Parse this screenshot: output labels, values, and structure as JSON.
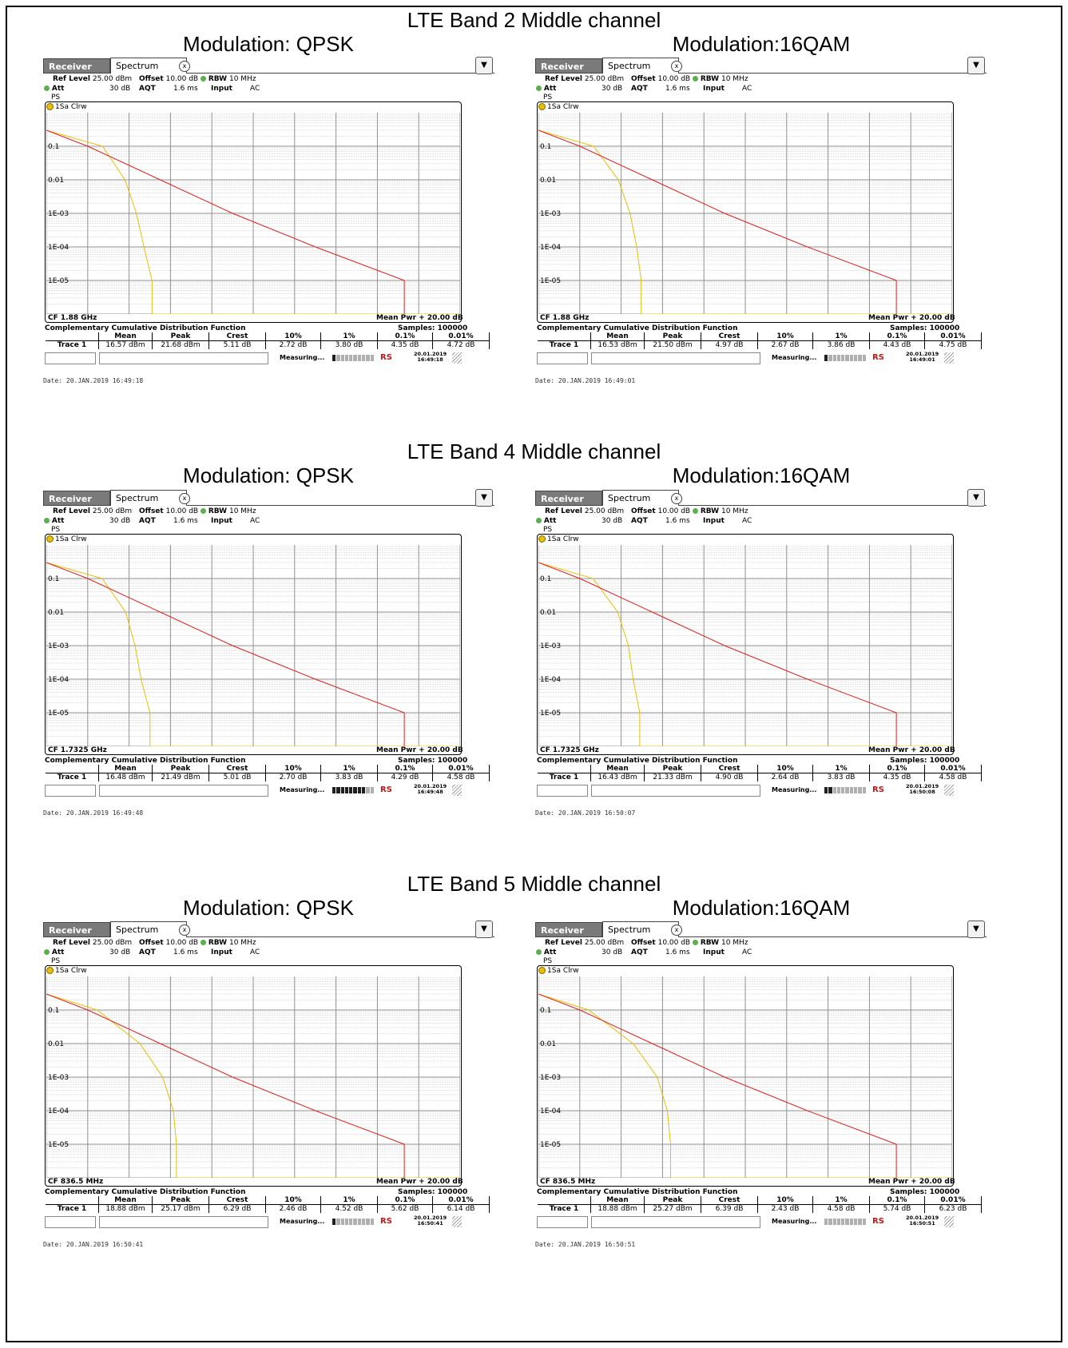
{
  "sections": [
    {
      "title": "LTE Band 2 Middle channel"
    },
    {
      "title": "LTE Band 4 Middle channel"
    },
    {
      "title": "LTE Band 5 Middle channel"
    }
  ],
  "modulation_labels": [
    "Modulation: QPSK",
    "Modulation:16QAM"
  ],
  "ui": {
    "tab_receiver": "Receiver",
    "tab_spectrum": "Spectrum",
    "close_glyph": "x",
    "ref_level_label": "Ref Level",
    "ref_level_value": "25.00 dBm",
    "offset_label": "Offset",
    "offset_value": "10.00 dB",
    "rbw_label": "RBW",
    "rbw_value": "10 MHz",
    "att_label": "Att",
    "att_value": "30 dB",
    "aqt_label": "AQT",
    "aqt_value": "1.6 ms",
    "input_label": "Input",
    "input_value": "AC",
    "ps_label": "PS",
    "trace_label": "1Sa Clrw",
    "mean_pwr": "Mean Pwr + 20.00 dB",
    "ccdf_title": "Complementary Cumulative Distribution Function",
    "samples": "Samples:  100000",
    "table_headers": [
      "",
      "Mean",
      "Peak",
      "Crest",
      "10%",
      "1%",
      "0.1%",
      "0.01%"
    ],
    "measuring": "Measuring...",
    "logo": "RS",
    "y_tick_labels": [
      "0.1",
      "0.01",
      "1E-03",
      "1E-04",
      "1E-05"
    ]
  },
  "colors": {
    "trace_red": "#e02020",
    "trace_yellow": "#e8c000",
    "grid": "#808080"
  },
  "chart_data": [
    {
      "type": "line",
      "title": "LTE Band 2 Middle channel - Modulation: QPSK",
      "cf": "CF 1.88 GHz",
      "date": "Date: 20.JAN.2019  16:49:18",
      "status_date": "20.01.2019",
      "status_time": "16:49:18",
      "meter_on": 1,
      "row": [
        "Trace 1",
        "16.57 dBm",
        "21.68 dBm",
        "5.11 dB",
        "2.72 dB",
        "3.80 dB",
        "4.35 dB",
        "4.72 dB"
      ],
      "ylim": [
        1e-06,
        1
      ],
      "xlim": [
        0,
        20
      ],
      "series": [
        {
          "values_x": [
            0,
            2.72,
            3.8,
            4.35,
            4.72,
            5.11
          ]
        },
        {
          "values_x": [
            0,
            2.0,
            5.5,
            9.0,
            13.0,
            17.3
          ]
        }
      ]
    },
    {
      "type": "line",
      "title": "LTE Band 2 Middle channel - Modulation:16QAM",
      "cf": "CF 1.88 GHz",
      "date": "Date: 20.JAN.2019  16:49:01",
      "status_date": "20.01.2019",
      "status_time": "16:49:01",
      "meter_on": 1,
      "row": [
        "Trace 1",
        "16.53 dBm",
        "21.50 dBm",
        "4.97 dB",
        "2.67 dB",
        "3.86 dB",
        "4.43 dB",
        "4.75 dB"
      ],
      "ylim": [
        1e-06,
        1
      ],
      "xlim": [
        0,
        20
      ],
      "series": [
        {
          "values_x": [
            0,
            2.67,
            3.86,
            4.43,
            4.75,
            4.97
          ]
        },
        {
          "values_x": [
            0,
            2.0,
            5.5,
            9.0,
            13.0,
            17.3
          ]
        }
      ]
    },
    {
      "type": "line",
      "title": "LTE Band 4 Middle channel - Modulation: QPSK",
      "cf": "CF 1.7325 GHz",
      "date": "Date: 20.JAN.2019  16:49:48",
      "status_date": "20.01.2019",
      "status_time": "16:49:48",
      "meter_on": 8,
      "row": [
        "Trace 1",
        "16.48 dBm",
        "21.49 dBm",
        "5.01 dB",
        "2.70 dB",
        "3.83 dB",
        "4.29 dB",
        "4.58 dB"
      ],
      "ylim": [
        1e-06,
        1
      ],
      "xlim": [
        0,
        20
      ],
      "series": [
        {
          "values_x": [
            0,
            2.7,
            3.83,
            4.29,
            4.58,
            5.01
          ]
        },
        {
          "values_x": [
            0,
            2.0,
            5.5,
            9.0,
            13.0,
            17.3
          ]
        }
      ]
    },
    {
      "type": "line",
      "title": "LTE Band 4 Middle channel - Modulation:16QAM",
      "cf": "CF 1.7325 GHz",
      "date": "Date: 20.JAN.2019  16:50:07",
      "status_date": "20.01.2019",
      "status_time": "16:50:08",
      "meter_on": 2,
      "row": [
        "Trace 1",
        "16.43 dBm",
        "21.33 dBm",
        "4.90 dB",
        "2.64 dB",
        "3.83 dB",
        "4.35 dB",
        "4.58 dB"
      ],
      "ylim": [
        1e-06,
        1
      ],
      "xlim": [
        0,
        20
      ],
      "series": [
        {
          "values_x": [
            0,
            2.64,
            3.83,
            4.35,
            4.58,
            4.9
          ]
        },
        {
          "values_x": [
            0,
            2.0,
            5.5,
            9.0,
            13.0,
            17.3
          ]
        }
      ]
    },
    {
      "type": "line",
      "title": "LTE Band 5 Middle channel - Modulation: QPSK",
      "cf": "CF 836.5 MHz",
      "date": "Date: 20.JAN.2019  16:50:41",
      "status_date": "20.01.2019",
      "status_time": "16:50:41",
      "meter_on": 1,
      "row": [
        "Trace 1",
        "18.88 dBm",
        "25.17 dBm",
        "6.29 dB",
        "2.46 dB",
        "4.52 dB",
        "5.62 dB",
        "6.14 dB"
      ],
      "ylim": [
        1e-06,
        1
      ],
      "xlim": [
        0,
        20
      ],
      "series": [
        {
          "values_x": [
            0,
            2.46,
            4.52,
            5.62,
            6.14,
            6.29
          ]
        },
        {
          "values_x": [
            0,
            2.0,
            5.5,
            9.0,
            13.0,
            17.3
          ]
        }
      ]
    },
    {
      "type": "line",
      "title": "LTE Band 5 Middle channel - Modulation:16QAM",
      "cf": "CF 836.5 MHz",
      "date": "Date: 20.JAN.2019  16:50:51",
      "status_date": "20.01.2019",
      "status_time": "16:50:51",
      "meter_on": 0,
      "row": [
        "Trace 1",
        "18.88 dBm",
        "25.27 dBm",
        "6.39 dB",
        "2.43 dB",
        "4.58 dB",
        "5.74 dB",
        "6.23 dB"
      ],
      "ylim": [
        1e-06,
        1
      ],
      "xlim": [
        0,
        20
      ],
      "series": [
        {
          "values_x": [
            0,
            2.43,
            4.58,
            5.74,
            6.23,
            6.39
          ]
        },
        {
          "values_x": [
            0,
            2.0,
            5.5,
            9.0,
            13.0,
            17.3
          ]
        }
      ]
    }
  ]
}
